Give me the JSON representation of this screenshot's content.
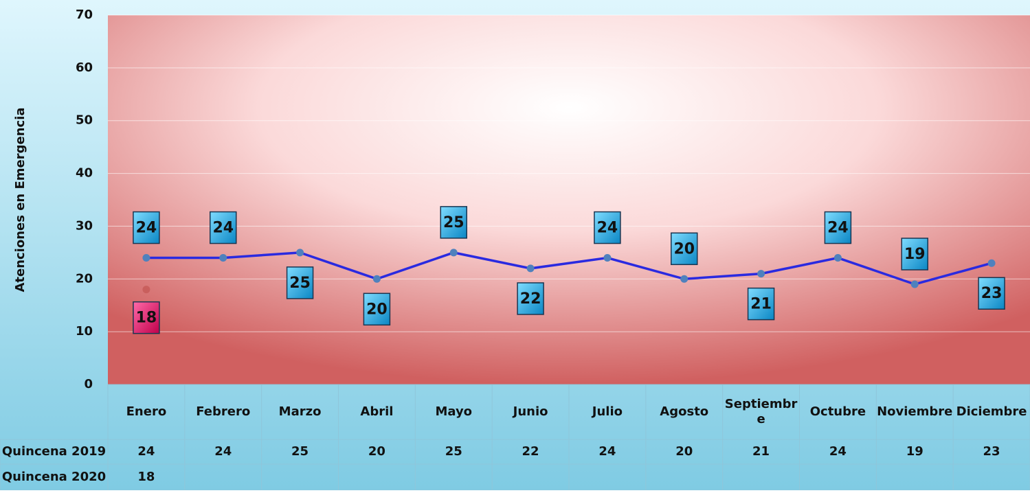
{
  "chart_data": {
    "type": "line",
    "y_label": "Atenciones en Emergencia",
    "categories": [
      "Enero",
      "Febrero",
      "Marzo",
      "Abril",
      "Mayo",
      "Junio",
      "Julio",
      "Agosto",
      "Septiembre",
      "Octubre",
      "Noviembre",
      "Diciembre"
    ],
    "series": [
      {
        "name": "Quincena 2019",
        "color": "#2a2ae0",
        "label_color": "#1eb4e8",
        "values": [
          24,
          24,
          25,
          20,
          25,
          22,
          24,
          20,
          21,
          24,
          19,
          23
        ]
      },
      {
        "name": "Quincena 2020",
        "color": "#c0504d",
        "label_color": "#e8106a",
        "values": [
          18,
          null,
          null,
          null,
          null,
          null,
          null,
          null,
          null,
          null,
          null,
          null
        ]
      }
    ],
    "ylim": [
      0,
      70
    ],
    "yticks": [
      0,
      10,
      20,
      30,
      40,
      50,
      60,
      70
    ],
    "grid": true
  }
}
